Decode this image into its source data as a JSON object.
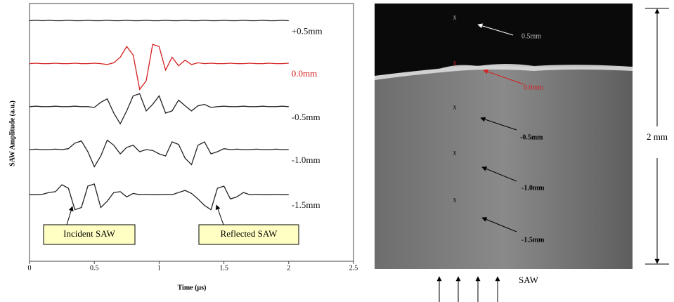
{
  "chart_data": {
    "type": "line",
    "xlabel": "Time (µs)",
    "ylabel": "SAW Amplitude (a.u.)",
    "xlim": [
      0,
      2.5
    ],
    "xticks": [
      0,
      0.5,
      1,
      1.5,
      2,
      2.5
    ],
    "ylim": [
      0,
      6
    ],
    "x": [
      0,
      0.05,
      0.1,
      0.15,
      0.2,
      0.25,
      0.3,
      0.35,
      0.4,
      0.45,
      0.5,
      0.55,
      0.6,
      0.65,
      0.7,
      0.75,
      0.8,
      0.85,
      0.9,
      0.95,
      1,
      1.05,
      1.1,
      1.15,
      1.2,
      1.25,
      1.3,
      1.35,
      1.4,
      1.45,
      1.5,
      1.55,
      1.6,
      1.65,
      1.7,
      1.75,
      1.8,
      1.85,
      1.9,
      1.95,
      2
    ],
    "series": [
      {
        "name": "+0.5mm",
        "color": "#222222",
        "values": [
          5.6,
          5.61,
          5.6,
          5.61,
          5.6,
          5.6,
          5.61,
          5.6,
          5.6,
          5.61,
          5.6,
          5.6,
          5.61,
          5.6,
          5.6,
          5.61,
          5.6,
          5.6,
          5.61,
          5.6,
          5.6,
          5.61,
          5.6,
          5.6,
          5.61,
          5.6,
          5.6,
          5.61,
          5.6,
          5.6,
          5.61,
          5.6,
          5.6,
          5.61,
          5.6,
          5.6,
          5.61,
          5.6,
          5.6,
          5.61,
          5.6
        ]
      },
      {
        "name": "0.0mm",
        "color": "#d42020",
        "values": [
          4.6,
          4.61,
          4.6,
          4.6,
          4.61,
          4.6,
          4.6,
          4.61,
          4.6,
          4.6,
          4.61,
          4.6,
          4.58,
          4.62,
          4.75,
          5.0,
          4.8,
          4.0,
          4.2,
          5.05,
          5.0,
          4.45,
          4.75,
          4.55,
          4.68,
          4.58,
          4.62,
          4.6,
          4.61,
          4.6,
          4.6,
          4.61,
          4.6,
          4.6,
          4.61,
          4.6,
          4.6,
          4.61,
          4.6,
          4.6,
          4.61
        ]
      },
      {
        "name": "-0.5mm",
        "color": "#222222",
        "values": [
          3.6,
          3.61,
          3.6,
          3.6,
          3.61,
          3.6,
          3.6,
          3.61,
          3.6,
          3.6,
          3.58,
          3.7,
          3.78,
          3.45,
          3.2,
          3.5,
          3.85,
          3.9,
          3.5,
          3.65,
          3.85,
          3.45,
          3.5,
          3.75,
          3.62,
          3.5,
          3.62,
          3.65,
          3.58,
          3.6,
          3.61,
          3.6,
          3.6,
          3.61,
          3.6,
          3.6,
          3.61,
          3.6,
          3.6,
          3.61,
          3.6
        ]
      },
      {
        "name": "-1.0mm",
        "color": "#222222",
        "values": [
          2.6,
          2.61,
          2.6,
          2.6,
          2.61,
          2.6,
          2.62,
          2.75,
          2.8,
          2.55,
          2.2,
          2.45,
          2.82,
          2.7,
          2.5,
          2.65,
          2.7,
          2.55,
          2.6,
          2.58,
          2.5,
          2.45,
          2.78,
          2.72,
          2.4,
          2.25,
          2.7,
          2.78,
          2.5,
          2.55,
          2.62,
          2.6,
          2.61,
          2.6,
          2.6,
          2.61,
          2.6,
          2.6,
          2.61,
          2.6,
          2.6
        ]
      },
      {
        "name": "-1.5mm",
        "color": "#222222",
        "values": [
          1.55,
          1.55,
          1.56,
          1.6,
          1.62,
          1.78,
          1.7,
          1.2,
          1.25,
          1.75,
          1.8,
          1.25,
          1.4,
          1.6,
          1.62,
          1.5,
          1.58,
          1.55,
          1.56,
          1.55,
          1.55,
          1.56,
          1.55,
          1.6,
          1.65,
          1.58,
          1.45,
          1.3,
          1.2,
          1.7,
          1.75,
          1.45,
          1.5,
          1.6,
          1.55,
          1.56,
          1.55,
          1.55,
          1.56,
          1.55,
          1.55
        ]
      }
    ],
    "annotations": [
      "Incident SAW",
      "Reflected SAW"
    ]
  },
  "image_panel": {
    "labels": [
      "0.5mm",
      "0.0mm",
      "-0.5mm",
      "-1.0mm",
      "-1.5mm"
    ],
    "markers": [
      "x",
      "x",
      "x",
      "x",
      "x"
    ],
    "scale_label": "2 mm",
    "saw_label": "SAW"
  }
}
